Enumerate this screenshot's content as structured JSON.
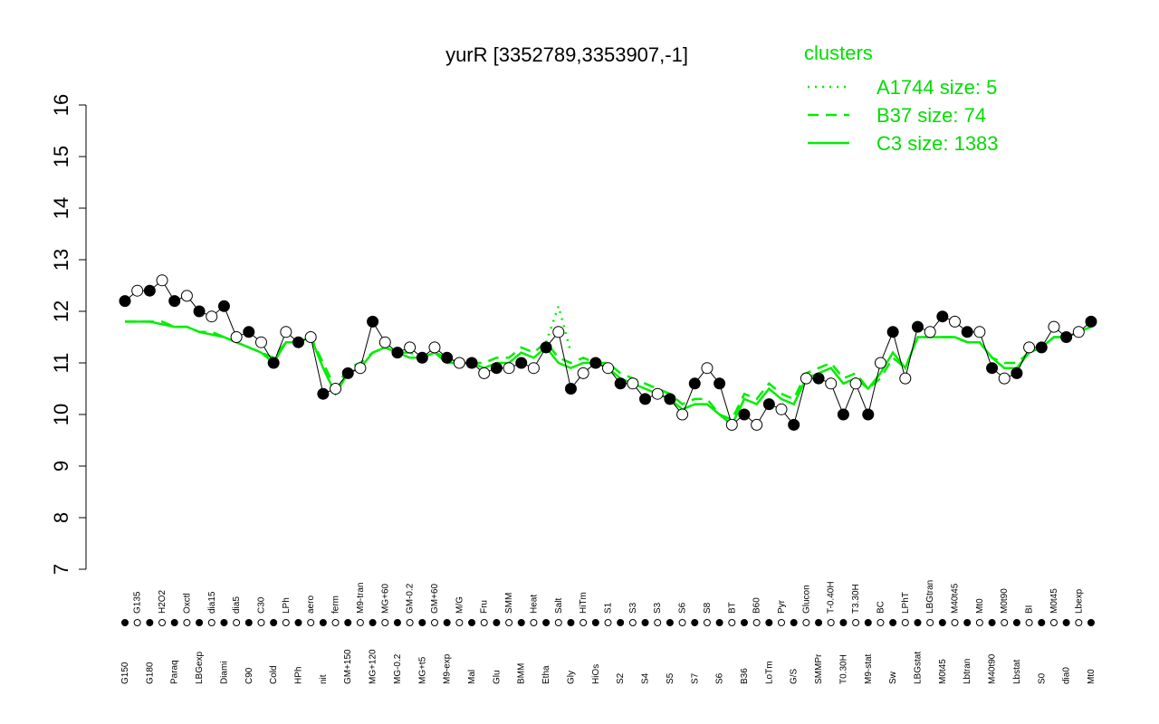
{
  "chart_data": {
    "type": "line",
    "title": "yurR [3352789,3353907,-1]",
    "legend_title": "clusters",
    "legend_position": "top-right",
    "ylim": [
      7,
      16
    ],
    "yticks": [
      7,
      8,
      9,
      10,
      11,
      12,
      13,
      14,
      15,
      16
    ],
    "categories": [
      "G150",
      "G135",
      "G180",
      "H2O2",
      "Paraq",
      "Oxctl",
      "LBGexp",
      "dia15",
      "Diami",
      "dia5",
      "C90",
      "C30",
      "Cold",
      "LPh",
      "HPh",
      "aero",
      "nit",
      "ferm",
      "GM+150",
      "M9-tran",
      "MG+120",
      "MG+60",
      "MG-0.2",
      "GM-0.2",
      "MG+t5",
      "GM+60",
      "M9-exp",
      "M/G",
      "Mal",
      "Fru",
      "Glu",
      "SMM",
      "BMM",
      "Heat",
      "Etha",
      "Salt",
      "Gly",
      "HiTm",
      "HiOs",
      "S1",
      "S2",
      "S3",
      "S4",
      "S3",
      "S5",
      "S6",
      "S7",
      "S8",
      "S6",
      "BT",
      "B36",
      "B60",
      "LoTm",
      "Pyr",
      "G/S",
      "Glucon",
      "SMMPr",
      "T-0.40H",
      "T0.30H",
      "T3.30H",
      "M9-stat",
      "BC",
      "Sw",
      "LPhT",
      "LBGstat",
      "LBGtran",
      "M0t45",
      "M40t45",
      "Lbtran",
      "Mt0",
      "M40t90",
      "M0t90",
      "Lbstat",
      "BI",
      "S0",
      "M0t45",
      "dia0",
      "Lbexp",
      "Mt0"
    ],
    "values": [
      12.2,
      12.4,
      12.4,
      12.6,
      12.2,
      12.3,
      12.0,
      11.9,
      12.1,
      11.5,
      11.6,
      11.4,
      11.0,
      11.6,
      11.4,
      11.5,
      10.4,
      10.5,
      10.8,
      10.9,
      11.8,
      11.4,
      11.2,
      11.3,
      11.1,
      11.3,
      11.1,
      11.0,
      11.0,
      10.8,
      10.9,
      10.9,
      11.0,
      10.9,
      11.3,
      11.6,
      10.5,
      10.8,
      11.0,
      10.9,
      10.6,
      10.6,
      10.3,
      10.4,
      10.3,
      10.0,
      10.6,
      10.9,
      10.6,
      9.8,
      10.0,
      9.8,
      10.2,
      10.1,
      9.8,
      10.7,
      10.7,
      10.6,
      10.0,
      10.6,
      10.0,
      11.0,
      11.6,
      10.7,
      11.7,
      11.6,
      11.9,
      11.8,
      11.6,
      11.6,
      10.9,
      10.7,
      10.8,
      11.3,
      11.3,
      11.7,
      11.5,
      11.6,
      11.8
    ],
    "color": "#000000",
    "series": [
      {
        "name": "A1744 size: 5",
        "color": "#00ee00",
        "dash": "dotted",
        "values": [
          null,
          null,
          null,
          null,
          null,
          null,
          null,
          null,
          null,
          null,
          null,
          null,
          null,
          null,
          null,
          null,
          null,
          null,
          null,
          null,
          null,
          null,
          null,
          null,
          null,
          null,
          null,
          null,
          null,
          null,
          null,
          null,
          null,
          null,
          11.4,
          12.1,
          11.2,
          null,
          null,
          null,
          null,
          null,
          null,
          null,
          null,
          null,
          null,
          null,
          null,
          null,
          null,
          null,
          null,
          null,
          null,
          null,
          null,
          null,
          null,
          null,
          null,
          null,
          null,
          null,
          null,
          null,
          null,
          null,
          null,
          null,
          null,
          null,
          null,
          null,
          null,
          null,
          null,
          null,
          null
        ]
      },
      {
        "name": "B37 size: 74",
        "color": "#00ee00",
        "dash": "dashed",
        "values": [
          11.8,
          11.8,
          11.8,
          11.8,
          11.7,
          11.7,
          11.6,
          11.6,
          11.5,
          11.4,
          11.3,
          11.2,
          11.1,
          11.4,
          11.4,
          11.5,
          11.0,
          10.5,
          10.9,
          11.0,
          11.2,
          11.3,
          11.2,
          11.2,
          11.1,
          11.2,
          11.1,
          11.0,
          11.0,
          11.0,
          11.1,
          11.1,
          11.3,
          11.2,
          11.4,
          11.1,
          11.0,
          11.1,
          11.0,
          11.0,
          10.8,
          10.7,
          10.6,
          10.5,
          10.4,
          10.2,
          10.3,
          10.3,
          10.0,
          9.9,
          10.4,
          10.3,
          10.6,
          10.4,
          10.3,
          10.8,
          10.9,
          11.0,
          10.7,
          10.8,
          10.5,
          10.7,
          11.1,
          10.9,
          11.5,
          11.5,
          11.5,
          11.5,
          11.4,
          11.4,
          11.1,
          11.0,
          11.0,
          11.2,
          11.3,
          11.5,
          11.5,
          11.6,
          11.7
        ]
      },
      {
        "name": "C3 size: 1383",
        "color": "#00ee00",
        "dash": "solid",
        "values": [
          11.8,
          11.8,
          11.8,
          11.75,
          11.7,
          11.7,
          11.6,
          11.55,
          11.5,
          11.4,
          11.3,
          11.2,
          11.0,
          11.4,
          11.4,
          11.5,
          10.9,
          10.4,
          10.8,
          10.9,
          11.2,
          11.3,
          11.2,
          11.1,
          11.1,
          11.2,
          11.0,
          11.0,
          11.0,
          10.9,
          11.0,
          11.0,
          11.2,
          11.1,
          11.3,
          11.0,
          10.9,
          11.0,
          11.0,
          10.9,
          10.7,
          10.6,
          10.5,
          10.4,
          10.3,
          10.1,
          10.2,
          10.2,
          10.0,
          9.8,
          10.3,
          10.2,
          10.5,
          10.3,
          10.2,
          10.7,
          10.8,
          10.9,
          10.6,
          10.7,
          10.5,
          10.8,
          11.2,
          10.9,
          11.5,
          11.5,
          11.5,
          11.5,
          11.4,
          11.4,
          11.1,
          10.9,
          10.9,
          11.2,
          11.3,
          11.5,
          11.5,
          11.6,
          11.7
        ]
      }
    ]
  }
}
